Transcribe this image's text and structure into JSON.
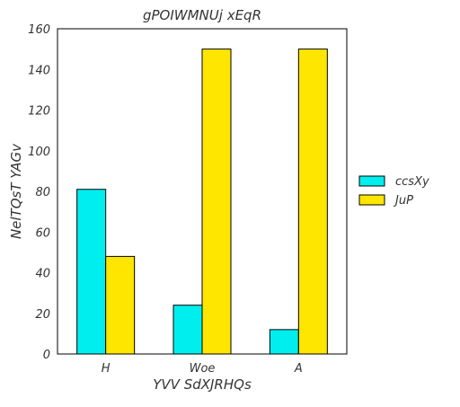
{
  "chart_data": {
    "type": "bar",
    "title": "gPOIWMNUj xEqR",
    "xlabel": "YVV SdXJRHQs",
    "ylabel": "NelTQsT  YAGv",
    "categories": [
      "H",
      "Woe",
      "A"
    ],
    "ylim": [
      0,
      160
    ],
    "yticks": [
      0,
      20,
      40,
      60,
      80,
      100,
      120,
      140,
      160
    ],
    "grid": false,
    "legend_position": "right",
    "series": [
      {
        "name": "ccsXy",
        "color": "#00eeee",
        "values": [
          81,
          24,
          12
        ]
      },
      {
        "name": "JuP",
        "color": "#ffe600",
        "values": [
          48,
          150,
          150
        ]
      }
    ]
  }
}
